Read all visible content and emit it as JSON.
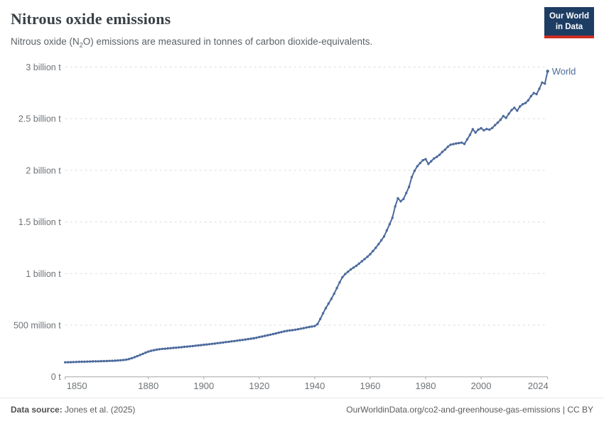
{
  "header": {
    "title": "Nitrous oxide emissions",
    "subtitle_parts": {
      "pre": "Nitrous oxide (N",
      "sub": "2",
      "post": "O) emissions are measured in tonnes of carbon dioxide-equivalents."
    },
    "logo": {
      "line1": "Our World",
      "line2": "in Data"
    }
  },
  "chart_data": {
    "type": "line",
    "title": "Nitrous oxide emissions",
    "unit": "tonnes of carbon dioxide-equivalents",
    "values_in": "million tonnes CO2-eq",
    "x_range": [
      1850,
      2024
    ],
    "y_range": [
      0,
      3000
    ],
    "grid": true,
    "legend_position": "end-of-line",
    "end_label": "World",
    "x_ticks": [
      1850,
      1880,
      1900,
      1920,
      1940,
      1960,
      1980,
      2000,
      2024
    ],
    "y_ticks": [
      {
        "value": 0,
        "label": "0 t"
      },
      {
        "value": 500,
        "label": "500 million t"
      },
      {
        "value": 1000,
        "label": "1 billion t"
      },
      {
        "value": 1500,
        "label": "1.5 billion t"
      },
      {
        "value": 2000,
        "label": "2 billion t"
      },
      {
        "value": 2500,
        "label": "2.5 billion t"
      },
      {
        "value": 3000,
        "label": "3 billion t"
      }
    ],
    "series": [
      {
        "name": "World",
        "color": "#4c6a9c",
        "points": [
          [
            1850,
            140
          ],
          [
            1851,
            141
          ],
          [
            1852,
            142
          ],
          [
            1853,
            143
          ],
          [
            1854,
            144
          ],
          [
            1855,
            145
          ],
          [
            1856,
            146
          ],
          [
            1857,
            146
          ],
          [
            1858,
            147
          ],
          [
            1859,
            148
          ],
          [
            1860,
            149
          ],
          [
            1861,
            150
          ],
          [
            1862,
            150
          ],
          [
            1863,
            151
          ],
          [
            1864,
            152
          ],
          [
            1865,
            153
          ],
          [
            1866,
            154
          ],
          [
            1867,
            155
          ],
          [
            1868,
            156
          ],
          [
            1869,
            158
          ],
          [
            1870,
            160
          ],
          [
            1871,
            162
          ],
          [
            1872,
            166
          ],
          [
            1873,
            172
          ],
          [
            1874,
            180
          ],
          [
            1875,
            190
          ],
          [
            1876,
            200
          ],
          [
            1877,
            211
          ],
          [
            1878,
            222
          ],
          [
            1879,
            234
          ],
          [
            1880,
            244
          ],
          [
            1881,
            252
          ],
          [
            1882,
            258
          ],
          [
            1883,
            263
          ],
          [
            1884,
            267
          ],
          [
            1885,
            270
          ],
          [
            1886,
            272
          ],
          [
            1887,
            275
          ],
          [
            1888,
            277
          ],
          [
            1889,
            280
          ],
          [
            1890,
            282
          ],
          [
            1891,
            285
          ],
          [
            1892,
            287
          ],
          [
            1893,
            290
          ],
          [
            1894,
            292
          ],
          [
            1895,
            295
          ],
          [
            1896,
            298
          ],
          [
            1897,
            301
          ],
          [
            1898,
            304
          ],
          [
            1899,
            307
          ],
          [
            1900,
            310
          ],
          [
            1901,
            313
          ],
          [
            1902,
            316
          ],
          [
            1903,
            319
          ],
          [
            1904,
            322
          ],
          [
            1905,
            326
          ],
          [
            1906,
            329
          ],
          [
            1907,
            332
          ],
          [
            1908,
            336
          ],
          [
            1909,
            339
          ],
          [
            1910,
            343
          ],
          [
            1911,
            346
          ],
          [
            1912,
            350
          ],
          [
            1913,
            354
          ],
          [
            1914,
            357
          ],
          [
            1915,
            361
          ],
          [
            1916,
            365
          ],
          [
            1917,
            369
          ],
          [
            1918,
            373
          ],
          [
            1919,
            378
          ],
          [
            1920,
            385
          ],
          [
            1921,
            390
          ],
          [
            1922,
            396
          ],
          [
            1923,
            402
          ],
          [
            1924,
            408
          ],
          [
            1925,
            414
          ],
          [
            1926,
            420
          ],
          [
            1927,
            427
          ],
          [
            1928,
            433
          ],
          [
            1929,
            440
          ],
          [
            1930,
            445
          ],
          [
            1931,
            449
          ],
          [
            1932,
            452
          ],
          [
            1933,
            456
          ],
          [
            1934,
            461
          ],
          [
            1935,
            466
          ],
          [
            1936,
            471
          ],
          [
            1937,
            477
          ],
          [
            1938,
            482
          ],
          [
            1939,
            487
          ],
          [
            1940,
            492
          ],
          [
            1941,
            510
          ],
          [
            1942,
            560
          ],
          [
            1943,
            615
          ],
          [
            1944,
            665
          ],
          [
            1945,
            710
          ],
          [
            1946,
            755
          ],
          [
            1947,
            805
          ],
          [
            1948,
            860
          ],
          [
            1949,
            915
          ],
          [
            1950,
            965
          ],
          [
            1951,
            995
          ],
          [
            1952,
            1018
          ],
          [
            1953,
            1040
          ],
          [
            1954,
            1058
          ],
          [
            1955,
            1075
          ],
          [
            1956,
            1096
          ],
          [
            1957,
            1118
          ],
          [
            1958,
            1140
          ],
          [
            1959,
            1163
          ],
          [
            1960,
            1188
          ],
          [
            1961,
            1218
          ],
          [
            1962,
            1250
          ],
          [
            1963,
            1285
          ],
          [
            1964,
            1322
          ],
          [
            1965,
            1360
          ],
          [
            1966,
            1418
          ],
          [
            1967,
            1478
          ],
          [
            1968,
            1540
          ],
          [
            1969,
            1650
          ],
          [
            1970,
            1730
          ],
          [
            1971,
            1700
          ],
          [
            1972,
            1722
          ],
          [
            1973,
            1780
          ],
          [
            1974,
            1840
          ],
          [
            1975,
            1935
          ],
          [
            1976,
            1995
          ],
          [
            1977,
            2040
          ],
          [
            1978,
            2070
          ],
          [
            1979,
            2098
          ],
          [
            1980,
            2108
          ],
          [
            1981,
            2062
          ],
          [
            1982,
            2088
          ],
          [
            1983,
            2115
          ],
          [
            1984,
            2130
          ],
          [
            1985,
            2150
          ],
          [
            1986,
            2178
          ],
          [
            1987,
            2200
          ],
          [
            1988,
            2228
          ],
          [
            1989,
            2248
          ],
          [
            1990,
            2254
          ],
          [
            1991,
            2260
          ],
          [
            1992,
            2264
          ],
          [
            1993,
            2268
          ],
          [
            1994,
            2256
          ],
          [
            1995,
            2300
          ],
          [
            1996,
            2344
          ],
          [
            1997,
            2398
          ],
          [
            1998,
            2366
          ],
          [
            1999,
            2394
          ],
          [
            2000,
            2408
          ],
          [
            2001,
            2388
          ],
          [
            2002,
            2400
          ],
          [
            2003,
            2394
          ],
          [
            2004,
            2410
          ],
          [
            2005,
            2438
          ],
          [
            2006,
            2462
          ],
          [
            2007,
            2490
          ],
          [
            2008,
            2526
          ],
          [
            2009,
            2508
          ],
          [
            2010,
            2548
          ],
          [
            2011,
            2584
          ],
          [
            2012,
            2606
          ],
          [
            2013,
            2578
          ],
          [
            2014,
            2618
          ],
          [
            2015,
            2640
          ],
          [
            2016,
            2652
          ],
          [
            2017,
            2678
          ],
          [
            2018,
            2718
          ],
          [
            2019,
            2748
          ],
          [
            2020,
            2738
          ],
          [
            2021,
            2790
          ],
          [
            2022,
            2850
          ],
          [
            2023,
            2840
          ],
          [
            2024,
            2960
          ]
        ]
      }
    ]
  },
  "footer": {
    "source_label": "Data source:",
    "source_value": " Jones et al. (2025)",
    "link": "OurWorldinData.org/co2-and-greenhouse-gas-emissions",
    "separator": " | ",
    "license": "CC BY"
  },
  "colors": {
    "line": "#4c6a9c",
    "logo_bg": "#1d3d63",
    "logo_red": "#cb2d23",
    "grid": "#dcdcdc",
    "axis": "#a5a5a5",
    "tick_text": "#6e7377",
    "title_text": "#3a4045",
    "subtitle_text": "#5b6266"
  }
}
